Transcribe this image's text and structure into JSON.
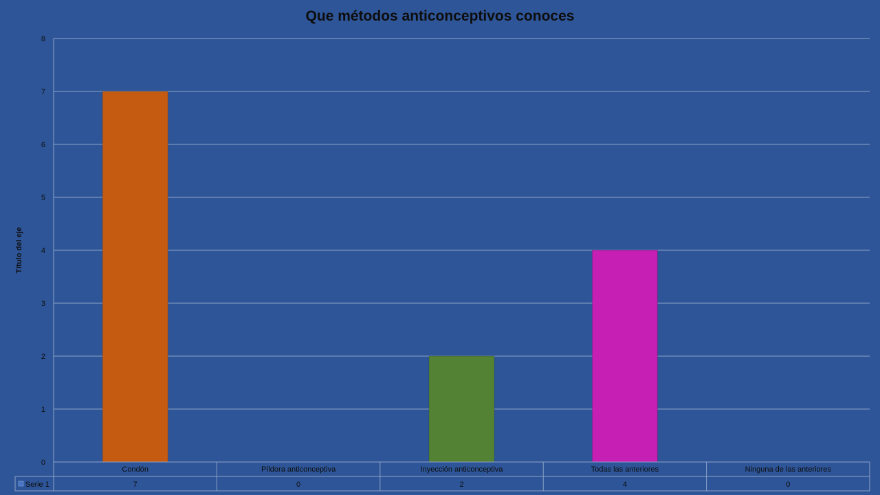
{
  "chart_data": {
    "type": "bar",
    "title": "Que métodos anticonceptivos conoces",
    "ylabel": "Título del eje",
    "ylim": [
      0,
      8
    ],
    "yticks": [
      0,
      1,
      2,
      3,
      4,
      5,
      6,
      7,
      8
    ],
    "grid": true,
    "categories": [
      "Condón",
      "Píldora anticonceptiva",
      "Inyección anticonceptiva",
      "Todas las anteriores",
      "Ninguna de las anteriores"
    ],
    "series": [
      {
        "name": "Serie 1",
        "values": [
          7,
          0,
          2,
          4,
          0
        ],
        "colors": [
          "#c55a11",
          "#4472c4",
          "#548235",
          "#c61fb3",
          "#4472c4"
        ]
      }
    ],
    "data_table": true
  }
}
